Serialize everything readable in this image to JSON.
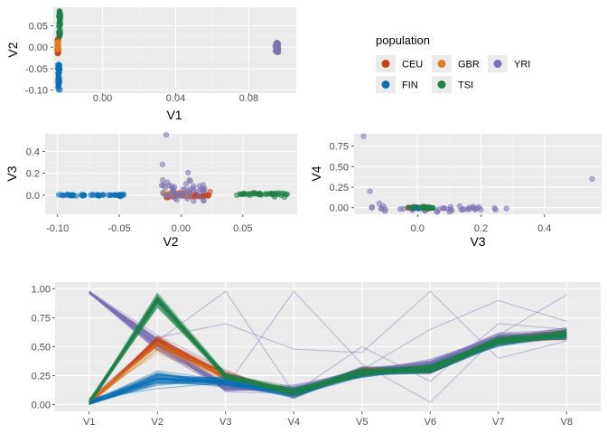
{
  "legend": {
    "title": "population",
    "items": [
      {
        "label": "CEU",
        "color": "#C4401F"
      },
      {
        "label": "GBR",
        "color": "#E3801E"
      },
      {
        "label": "YRI",
        "color": "#7B72B3"
      },
      {
        "label": "FIN",
        "color": "#0A6FB5"
      },
      {
        "label": "TSI",
        "color": "#1E8049"
      }
    ]
  },
  "chart_data": [
    {
      "type": "scatter",
      "panel": "top-left",
      "xlabel": "V1",
      "ylabel": "V2",
      "xlim": [
        -0.027,
        0.106
      ],
      "ylim": [
        -0.107,
        0.093
      ],
      "xticks": [
        {
          "v": 0.0,
          "label": "0.00"
        },
        {
          "v": 0.04,
          "label": "0.04"
        },
        {
          "v": 0.08,
          "label": "0.08"
        }
      ],
      "yticks": [
        {
          "v": 0.05,
          "label": "0.05"
        },
        {
          "v": 0.0,
          "label": "0.00"
        },
        {
          "v": -0.05,
          "label": "-0.05"
        },
        {
          "v": -0.1,
          "label": "-0.10"
        }
      ],
      "series": [
        {
          "name": "CEU",
          "color": "#C4401F",
          "x_center": -0.0245,
          "x_spread": 0.0007,
          "y_range": [
            -0.015,
            0.02
          ],
          "count": 40
        },
        {
          "name": "GBR",
          "color": "#E3801E",
          "x_center": -0.0245,
          "x_spread": 0.0007,
          "y_range": [
            -0.008,
            0.012
          ],
          "count": 15
        },
        {
          "name": "TSI",
          "color": "#1E8049",
          "x_center": -0.0235,
          "x_spread": 0.0007,
          "y_range": [
            0.025,
            0.085
          ],
          "count": 45
        },
        {
          "name": "FIN",
          "color": "#0A6FB5",
          "x_center": -0.024,
          "x_spread": 0.0008,
          "y_range": [
            -0.1,
            -0.04
          ],
          "count": 50
        },
        {
          "name": "YRI",
          "color": "#7B72B3",
          "x_center": 0.0955,
          "x_spread": 0.0012,
          "y_range": [
            -0.012,
            0.012
          ],
          "count": 50
        }
      ]
    },
    {
      "type": "scatter",
      "panel": "middle-left",
      "xlabel": "V2",
      "ylabel": "V3",
      "xlim": [
        -0.11,
        0.094
      ],
      "ylim": [
        -0.175,
        0.56
      ],
      "xticks": [
        {
          "v": -0.1,
          "label": "-0.10"
        },
        {
          "v": -0.05,
          "label": "-0.05"
        },
        {
          "v": 0.0,
          "label": "0.00"
        },
        {
          "v": 0.05,
          "label": "0.05"
        }
      ],
      "yticks": [
        {
          "v": 0.4,
          "label": "0.4"
        },
        {
          "v": 0.2,
          "label": "0.2"
        },
        {
          "v": 0.0,
          "label": "0.0"
        }
      ],
      "series": [
        {
          "name": "FIN",
          "color": "#0A6FB5",
          "x_range": [
            -0.1,
            -0.045
          ],
          "y_center": 0.0,
          "y_spread": 0.01,
          "count": 50
        },
        {
          "name": "CEU",
          "color": "#C4401F",
          "x_range": [
            -0.012,
            0.025
          ],
          "y_center": 0.0,
          "y_spread": 0.025,
          "count": 45
        },
        {
          "name": "GBR",
          "color": "#E3801E",
          "x_range": [
            -0.018,
            0.008
          ],
          "y_center": 0.01,
          "y_spread": 0.02,
          "count": 15
        },
        {
          "name": "TSI",
          "color": "#1E8049",
          "x_range": [
            0.045,
            0.086
          ],
          "y_center": 0.01,
          "y_spread": 0.015,
          "count": 45
        },
        {
          "name": "YRI",
          "color": "#7B72B3",
          "x_range": [
            -0.016,
            0.02
          ],
          "y_center": 0.03,
          "y_spread": 0.12,
          "count": 50,
          "outliers": [
            [
              -0.012,
              0.55
            ],
            [
              -0.015,
              0.28
            ]
          ]
        }
      ]
    },
    {
      "type": "scatter",
      "panel": "middle-right",
      "xlabel": "V3",
      "ylabel": "V4",
      "xlim": [
        -0.2,
        0.58
      ],
      "ylim": [
        -0.08,
        0.9
      ],
      "xticks": [
        {
          "v": 0.0,
          "label": "0.0"
        },
        {
          "v": 0.2,
          "label": "0.2"
        },
        {
          "v": 0.4,
          "label": "0.4"
        }
      ],
      "yticks": [
        {
          "v": 0.75,
          "label": "0.75"
        },
        {
          "v": 0.5,
          "label": "0.50"
        },
        {
          "v": 0.25,
          "label": "0.25"
        },
        {
          "v": 0.0,
          "label": "0.00"
        }
      ],
      "series": [
        {
          "name": "YRI",
          "color": "#7B72B3",
          "x_range": [
            -0.15,
            0.25
          ],
          "y_center": -0.01,
          "y_spread": 0.05,
          "count": 45,
          "outliers": [
            [
              -0.17,
              0.87
            ],
            [
              -0.15,
              0.2
            ],
            [
              0.55,
              0.35
            ],
            [
              0.28,
              -0.01
            ]
          ]
        },
        {
          "name": "CEU",
          "color": "#C4401F",
          "x_range": [
            -0.03,
            0.04
          ],
          "y_center": 0.0,
          "y_spread": 0.01,
          "count": 25
        },
        {
          "name": "GBR",
          "color": "#E3801E",
          "x_range": [
            -0.03,
            0.03
          ],
          "y_center": 0.0,
          "y_spread": 0.01,
          "count": 10
        },
        {
          "name": "FIN",
          "color": "#0A6FB5",
          "x_range": [
            -0.02,
            0.03
          ],
          "y_center": 0.0,
          "y_spread": 0.01,
          "count": 20
        },
        {
          "name": "TSI",
          "color": "#1E8049",
          "x_range": [
            -0.03,
            0.05
          ],
          "y_center": 0.0,
          "y_spread": 0.01,
          "count": 25
        }
      ]
    },
    {
      "type": "line",
      "panel": "bottom",
      "categories": [
        "V1",
        "V2",
        "V3",
        "V4",
        "V5",
        "V6",
        "V7",
        "V8"
      ],
      "ylim": [
        -0.06,
        1.06
      ],
      "yticks": [
        {
          "v": 1.0,
          "label": "1.00"
        },
        {
          "v": 0.75,
          "label": "0.75"
        },
        {
          "v": 0.5,
          "label": "0.50"
        },
        {
          "v": 0.25,
          "label": "0.25"
        },
        {
          "v": 0.0,
          "label": "0.00"
        }
      ],
      "series": [
        {
          "name": "YRI",
          "color": "#7B72B3",
          "values": [
            0.97,
            0.52,
            0.15,
            0.12,
            0.28,
            0.35,
            0.58,
            0.62
          ],
          "line_count": 45,
          "jitter": 0.06,
          "outliers": [
            [
              0.98,
              0.55,
              0.98,
              0.1,
              0.5,
              0.2,
              0.7,
              0.65
            ],
            [
              0.96,
              0.5,
              0.15,
              0.98,
              0.35,
              0.02,
              0.6,
              0.95
            ],
            [
              0.97,
              0.58,
              0.7,
              0.48,
              0.45,
              0.98,
              0.4,
              0.55
            ],
            [
              0.98,
              0.6,
              0.3,
              0.05,
              0.3,
              0.65,
              0.9,
              0.72
            ]
          ]
        },
        {
          "name": "CEU",
          "color": "#C4401F",
          "values": [
            0.01,
            0.55,
            0.25,
            0.1,
            0.28,
            0.3,
            0.55,
            0.6
          ],
          "line_count": 40,
          "jitter": 0.05
        },
        {
          "name": "GBR",
          "color": "#E3801E",
          "values": [
            0.01,
            0.5,
            0.24,
            0.1,
            0.28,
            0.31,
            0.55,
            0.6
          ],
          "line_count": 10,
          "jitter": 0.05
        },
        {
          "name": "FIN",
          "color": "#0A6FB5",
          "values": [
            0.01,
            0.22,
            0.2,
            0.1,
            0.28,
            0.3,
            0.55,
            0.6
          ],
          "line_count": 45,
          "jitter": 0.06
        },
        {
          "name": "TSI",
          "color": "#1E8049",
          "values": [
            0.01,
            0.9,
            0.25,
            0.11,
            0.28,
            0.31,
            0.55,
            0.61
          ],
          "line_count": 45,
          "jitter": 0.05
        }
      ]
    }
  ]
}
